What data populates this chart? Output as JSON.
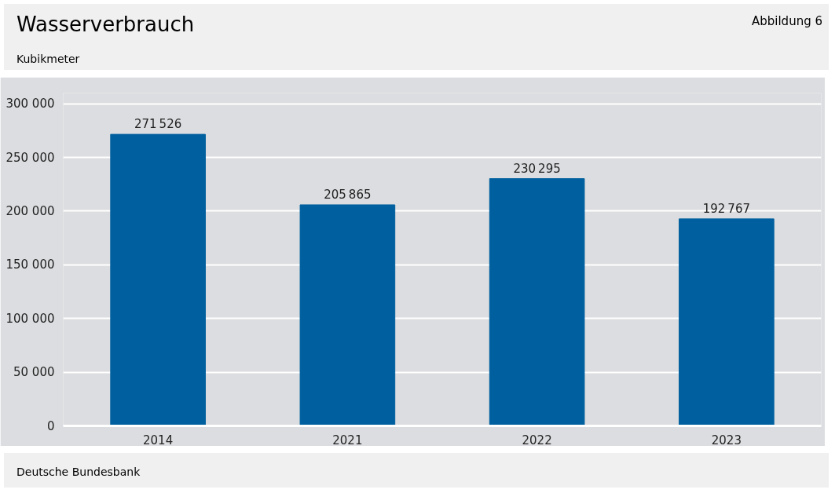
{
  "chart_data": {
    "type": "bar",
    "title": "Wasserverbrauch",
    "subtitle": "Kubikmeter",
    "annotations": [
      "Abbildung 6",
      "Deutsche Bundesbank"
    ],
    "categories": [
      "2014",
      "2021",
      "2022",
      "2023"
    ],
    "values": [
      271526,
      205865,
      230295,
      192767
    ],
    "color": "#00609f",
    "ylim": [
      0,
      310000
    ],
    "yticks": [
      {
        "value": 0,
        "label": "0"
      },
      {
        "value": 50000,
        "label": "50 000"
      },
      {
        "value": 100000,
        "label": "100 000"
      },
      {
        "value": 150000,
        "label": "150 000"
      },
      {
        "value": 200000,
        "label": "200 000"
      },
      {
        "value": 250000,
        "label": "250 000"
      },
      {
        "value": 300000,
        "label": "300 000"
      }
    ],
    "grid": "y",
    "data_labels": true
  }
}
